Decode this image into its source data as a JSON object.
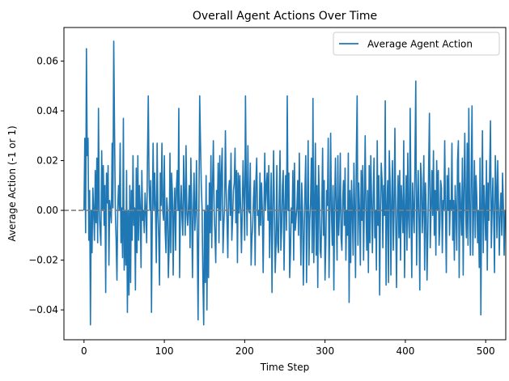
{
  "chart_data": {
    "type": "line",
    "title": "Overall Agent Actions Over Time",
    "xlabel": "Time Step",
    "ylabel": "Average Action (-1 or 1)",
    "xlim": [
      -25,
      525
    ],
    "ylim": [
      -0.052,
      0.0735
    ],
    "x_ticks": [
      0,
      100,
      200,
      300,
      400,
      500
    ],
    "y_ticks": [
      -0.04,
      -0.02,
      0.0,
      0.02,
      0.04,
      0.06
    ],
    "y_tick_labels": [
      "−0.04",
      "−0.02",
      "0.00",
      "0.02",
      "0.04",
      "0.06"
    ],
    "grid": false,
    "legend_position": "top-right",
    "reference_line": {
      "y": 0,
      "style": "dashed",
      "color": "#808080"
    },
    "series": [
      {
        "name": "Average Agent Action",
        "color": "#1f77b4",
        "x_start": 0,
        "x_step": 1,
        "values": [
          0.0,
          0.029,
          -0.009,
          0.065,
          0.022,
          0.029,
          -0.012,
          0.008,
          -0.046,
          0.0,
          -0.017,
          0.009,
          0.0,
          -0.012,
          0.016,
          -0.005,
          0.021,
          -0.013,
          0.041,
          0.0,
          -0.008,
          -0.014,
          0.024,
          0.0,
          0.018,
          -0.006,
          0.01,
          -0.033,
          0.015,
          0.003,
          0.018,
          -0.022,
          0.004,
          0.0,
          -0.005,
          0.027,
          0.001,
          0.068,
          0.032,
          0.0,
          -0.012,
          -0.028,
          0.001,
          0.01,
          0.0,
          0.027,
          -0.013,
          0.001,
          -0.019,
          0.037,
          -0.024,
          0.0,
          -0.022,
          0.016,
          -0.041,
          0.0,
          -0.034,
          0.01,
          -0.029,
          0.008,
          -0.012,
          0.022,
          -0.006,
          0.001,
          -0.032,
          0.017,
          -0.017,
          0.022,
          -0.012,
          0.01,
          0.001,
          -0.023,
          0.016,
          -0.004,
          0.0,
          -0.009,
          0.007,
          0.0,
          -0.013,
          0.021,
          0.046,
          0.01,
          0.0,
          0.012,
          -0.041,
          -0.002,
          0.027,
          0.0,
          0.015,
          0.0,
          -0.021,
          0.027,
          0.0,
          -0.011,
          -0.03,
          0.015,
          0.002,
          0.027,
          0.0,
          -0.004,
          0.022,
          -0.008,
          -0.017,
          0.005,
          0.0,
          -0.027,
          -0.014,
          0.023,
          -0.017,
          0.015,
          0.007,
          -0.026,
          0.0,
          0.009,
          -0.016,
          0.008,
          0.016,
          0.0,
          0.041,
          -0.027,
          0.0,
          0.01,
          -0.003,
          -0.01,
          0.022,
          0.006,
          -0.01,
          0.026,
          -0.001,
          -0.006,
          0.001,
          0.01,
          -0.015,
          0.021,
          0.001,
          -0.027,
          0.0,
          0.015,
          -0.008,
          0.0,
          0.02,
          -0.011,
          -0.044,
          0.0,
          0.046,
          0.027,
          0.01,
          0.0,
          -0.028,
          -0.046,
          0.0,
          -0.029,
          0.014,
          -0.04,
          0.002,
          -0.027,
          0.011,
          -0.009,
          0.022,
          -0.015,
          0.01,
          0.028,
          0.0,
          -0.01,
          -0.021,
          0.008,
          0.001,
          0.019,
          -0.013,
          0.022,
          -0.004,
          0.015,
          0.025,
          -0.017,
          -0.006,
          0.002,
          0.032,
          0.008,
          -0.004,
          -0.019,
          0.008,
          0.012,
          -0.002,
          0.023,
          -0.012,
          -0.003,
          0.008,
          0.011,
          0.025,
          -0.005,
          0.016,
          -0.021,
          0.015,
          -0.001,
          0.014,
          0.0,
          -0.017,
          0.0,
          0.02,
          0.005,
          -0.012,
          0.046,
          0.01,
          -0.01,
          0.026,
          0.0,
          -0.001,
          0.019,
          -0.022,
          -0.011,
          -0.006,
          0.005,
          0.012,
          -0.022,
          0.012,
          0.021,
          -0.002,
          0.0,
          -0.01,
          0.015,
          -0.006,
          0.011,
          0.0,
          -0.025,
          0.0,
          0.023,
          0.0,
          0.01,
          0.015,
          -0.004,
          0.018,
          -0.019,
          -0.002,
          0.015,
          -0.033,
          0.0,
          0.024,
          0.0,
          -0.025,
          -0.014,
          0.018,
          -0.013,
          -0.017,
          0.005,
          0.024,
          -0.016,
          -0.008,
          0.01,
          0.016,
          -0.024,
          0.0,
          0.014,
          -0.008,
          0.046,
          0.0,
          0.015,
          -0.027,
          -0.017,
          0.001,
          -0.005,
          0.016,
          -0.02,
          0.019,
          -0.008,
          -0.003,
          0.001,
          0.012,
          -0.01,
          0.023,
          0.0,
          -0.022,
          0.011,
          0.0,
          -0.03,
          -0.011,
          0.008,
          0.022,
          -0.029,
          0.0,
          0.028,
          -0.022,
          -0.004,
          0.003,
          0.021,
          -0.017,
          0.045,
          -0.021,
          0.0,
          0.027,
          -0.018,
          0.01,
          -0.031,
          0.018,
          0.005,
          -0.016,
          -0.019,
          0.001,
          0.025,
          -0.01,
          0.012,
          -0.028,
          -0.014,
          0.008,
          0.002,
          0.029,
          -0.027,
          -0.004,
          0.031,
          0.0,
          -0.014,
          0.01,
          -0.032,
          0.003,
          0.021,
          0.0,
          -0.02,
          0.022,
          -0.01,
          0.0,
          0.023,
          -0.011,
          -0.016,
          0.004,
          0.012,
          -0.006,
          0.017,
          -0.02,
          0.0,
          -0.01,
          0.023,
          -0.037,
          0.008,
          -0.021,
          0.012,
          0.0,
          -0.018,
          0.019,
          0.001,
          -0.027,
          0.022,
          0.046,
          -0.014,
          0.011,
          0.0,
          -0.022,
          0.016,
          -0.004,
          0.018,
          -0.02,
          0.003,
          0.03,
          0.0,
          -0.016,
          0.008,
          -0.025,
          0.018,
          -0.013,
          0.022,
          0.004,
          -0.017,
          0.005,
          0.021,
          -0.011,
          0.0,
          -0.024,
          0.028,
          -0.006,
          0.014,
          -0.034,
          0.0,
          0.019,
          0.012,
          -0.015,
          0.01,
          -0.002,
          0.044,
          -0.03,
          0.0,
          0.012,
          -0.029,
          0.024,
          0.011,
          -0.026,
          0.004,
          0.02,
          -0.016,
          0.0,
          0.033,
          -0.003,
          -0.031,
          0.0,
          0.014,
          -0.011,
          0.016,
          -0.02,
          0.01,
          0.001,
          -0.009,
          0.028,
          -0.027,
          0.0,
          0.014,
          -0.016,
          0.023,
          -0.003,
          -0.011,
          0.041,
          0.001,
          -0.027,
          0.011,
          0.0,
          -0.009,
          0.021,
          0.052,
          -0.022,
          0.0,
          0.016,
          -0.004,
          -0.032,
          0.019,
          0.013,
          -0.009,
          0.001,
          0.022,
          -0.024,
          0.011,
          0.0,
          -0.028,
          -0.009,
          0.017,
          0.039,
          -0.015,
          0.0,
          0.016,
          -0.002,
          0.024,
          -0.01,
          0.008,
          -0.018,
          0.02,
          0.0,
          0.016,
          -0.014,
          -0.006,
          0.012,
          0.009,
          -0.017,
          0.004,
          0.0,
          0.028,
          -0.002,
          -0.025,
          0.014,
          0.0,
          0.017,
          -0.01,
          0.004,
          0.0,
          0.027,
          -0.012,
          0.004,
          -0.02,
          0.01,
          0.0,
          -0.016,
          0.02,
          0.028,
          -0.027,
          0.011,
          0.0,
          -0.01,
          0.021,
          -0.026,
          0.008,
          0.031,
          0.0,
          -0.011,
          0.027,
          -0.014,
          0.041,
          0.0,
          -0.018,
          0.015,
          0.042,
          -0.018,
          0.0,
          0.02,
          -0.011,
          0.014,
          0.005,
          -0.013,
          0.0,
          -0.023,
          0.021,
          -0.042,
          0.003,
          0.032,
          -0.017,
          0.01,
          0.0,
          -0.012,
          0.02,
          -0.024,
          0.011,
          -0.004,
          0.017,
          0.036,
          -0.015,
          0.0,
          0.013,
          -0.003,
          -0.025,
          0.022,
          0.01,
          -0.011,
          0.02,
          0.0,
          -0.018,
          0.0,
          0.007,
          -0.01,
          0.015,
          0.002,
          -0.018,
          0.0
        ]
      }
    ]
  }
}
